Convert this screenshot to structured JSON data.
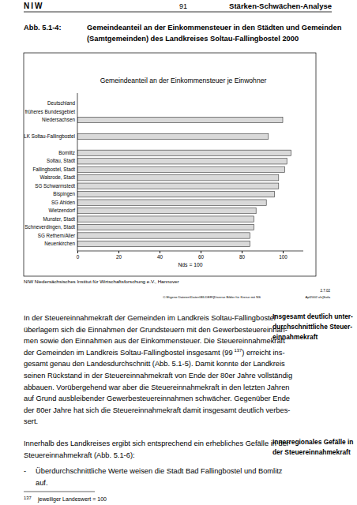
{
  "header": {
    "logo": "NIW",
    "page": "91",
    "section": "Stärken-Schwächen-Analyse"
  },
  "figure": {
    "label": "Abb. 5.1-4:",
    "caption": [
      "Gemeindeanteil an der Einkommensteuer in den Städten und Gemeinden",
      "(Samtgemeinden) des Landkreises Soltau-Fallingbostel 2000"
    ],
    "source": "NIW  Niedersächsisches Institut für Wirtschaftsforschung e.V., Hannover",
    "stamp_date": "2.7.02",
    "file_path": "C:\\Eigene Dateien\\Daten\\BILDER\\[Diverse Bilder für Kreise mit NS",
    "file_name": "Apl2002.xls]Sofa"
  },
  "chart_data": {
    "type": "bar",
    "orientation": "horizontal",
    "title": "Gemeindeanteil an der Einkommensteuer je Einwohner",
    "xlabel": "Nds = 100",
    "categories": [
      "Deutschland",
      "früheres Bundesgebiet",
      "Niedersachsen",
      null,
      "LK Soltau-Fallingbostel",
      null,
      "Bomlitz",
      "Soltau, Stadt",
      "Fallingbostel, Stadt",
      "Walsrode, Stadt",
      "SG Schwarmstedt",
      "Bispingen",
      "SG Ahlden",
      "Wietzendorf",
      "Munster, Stadt",
      "Schneverdingen, Stadt",
      "SG Rethem/Aller",
      "Neuenkirchen"
    ],
    "values": [
      null,
      null,
      100,
      null,
      93,
      null,
      104,
      102,
      101,
      98,
      98,
      96,
      92,
      87,
      86,
      86,
      84,
      84
    ],
    "color": "#d9d9d9",
    "xlim": [
      0,
      110
    ],
    "xticks": [
      0,
      20,
      40,
      60,
      80,
      100
    ],
    "grid": false
  },
  "body": {
    "paragraphs": [
      {
        "lines": [
          "In der Steuereinnahmekraft der Gemeinden im Landkreis Soltau-Fallingbostel",
          "überlagern sich die Einnahmen der Grundsteuern mit den Gewerbesteuereinnah-",
          "men sowie den Einnahmen aus der Einkommensteuer. Die Steuereinnahmekraft",
          {
            "text": "der Gemeinden im Landkreis Soltau-Fallingbostel insgesamt (99",
            "sup": "137",
            "rest": ") erreicht ins-"
          },
          "gesamt genau den Landesdurchschnitt (Abb. 5.1-5). Damit konnte der Landkreis",
          "seinen Rückstand in der Steuereinnahmekraft von Ende der 80er Jahre vollständig",
          "abbauen. Vorübergehend war aber die Steuereinnahmekraft in den letzten Jahren",
          "auf Grund ausbleibender Gewerbesteuereinnahmen schwächer. Gegenüber Ende",
          "der 80er Jahre hat sich die Steuereinnahmekraft damit insgesamt deutlich verbes-",
          "sert."
        ],
        "margin_note": [
          "Insgesamt deutlich unter-",
          "durchschnittliche Steuer-",
          "einnahmekraft"
        ]
      },
      {
        "lines": [
          "Innerhalb des Landkreises ergibt sich entsprechend ein erhebliches Gefälle in der",
          "Steuereinnahmekraft (Abb. 5.1-6):"
        ],
        "margin_note": [
          "Innerregionales Gefälle in",
          "der Steuereinnahmekraft"
        ]
      }
    ],
    "bullets": [
      {
        "marker": "-",
        "lines": [
          "Überdurchschnittliche Werte weisen die Stadt Bad Fallingbostel und Bomlitz",
          "auf."
        ]
      }
    ]
  },
  "footnote": {
    "number": "137",
    "text": "jeweiliger Landeswert = 100"
  }
}
